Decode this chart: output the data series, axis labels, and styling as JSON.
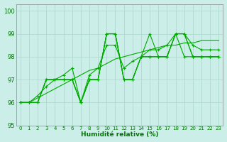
{
  "title": "",
  "xlabel": "Humidité relative (%)",
  "ylabel": "",
  "xlim": [
    -0.5,
    23.5
  ],
  "ylim": [
    95,
    100.3
  ],
  "yticks": [
    95,
    96,
    97,
    98,
    99,
    100
  ],
  "xtick_labels": [
    "0",
    "1",
    "2",
    "3",
    "4",
    "5",
    "6",
    "7",
    "8",
    "9",
    "10",
    "11",
    "12",
    "13",
    "14",
    "15",
    "16",
    "17",
    "18",
    "19",
    "20",
    "21",
    "22",
    "23"
  ],
  "background_color": "#cceee8",
  "grid_color": "#aad4cc",
  "line_color": "#00aa00",
  "series": [
    [
      96,
      96,
      96,
      97,
      97,
      97,
      97,
      96,
      97,
      97,
      99,
      99,
      97,
      97,
      98,
      98,
      98,
      98,
      99,
      99,
      98,
      98,
      98,
      98
    ],
    [
      96,
      96,
      96,
      97,
      97,
      97,
      97,
      96,
      97,
      97,
      99,
      99,
      97,
      97,
      98,
      99,
      98,
      98,
      99,
      98,
      98,
      98,
      98,
      98
    ],
    [
      96,
      96,
      96,
      97,
      97,
      97,
      97,
      96,
      97,
      97,
      99,
      99,
      97,
      97,
      98,
      98,
      98,
      98,
      99,
      99,
      98,
      98,
      98,
      98
    ],
    [
      96,
      96,
      96.3,
      96.7,
      97,
      97.2,
      97.5,
      96,
      97.2,
      97.5,
      98.5,
      98.5,
      97.5,
      97.8,
      98,
      98.3,
      98.3,
      98.5,
      99,
      99,
      98.5,
      98.3,
      98.3,
      98.3
    ]
  ],
  "series_smooth": [
    96,
    96,
    96.2,
    96.4,
    96.6,
    96.8,
    97.0,
    97.2,
    97.4,
    97.5,
    97.7,
    97.9,
    98.0,
    98.1,
    98.2,
    98.3,
    98.4,
    98.5,
    98.5,
    98.6,
    98.6,
    98.7,
    98.7,
    98.7
  ]
}
